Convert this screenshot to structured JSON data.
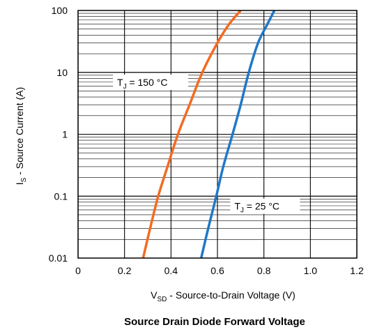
{
  "chart_data": {
    "type": "line",
    "title": "Source Drain Diode Forward Voltage",
    "xlabel": {
      "main": "V",
      "sub": "SD",
      "rest": " - Source-to-Drain Voltage (V)"
    },
    "ylabel": {
      "main": "I",
      "sub": "S",
      "rest": " - Source Current (A)"
    },
    "xlim": [
      0,
      1.2
    ],
    "ylim": [
      0.01,
      100
    ],
    "yscale": "log",
    "grid": true,
    "x_ticks": [
      "0",
      "0.2",
      "0.4",
      "0.6",
      "0.8",
      "1.0",
      "1.2"
    ],
    "y_ticks": [
      "0.01",
      "0.1",
      "1",
      "10",
      "100"
    ],
    "series": [
      {
        "color": "#f26b21",
        "annotation": {
          "main": "T",
          "sub": "J",
          "rest": " = 150 °C"
        },
        "x": [
          0.28,
          0.31,
          0.345,
          0.385,
          0.43,
          0.48,
          0.535,
          0.6,
          0.65,
          0.7
        ],
        "y": [
          0.01,
          0.03,
          0.1,
          0.3,
          1,
          3,
          10,
          30,
          60,
          100
        ]
      },
      {
        "color": "#1f78c8",
        "annotation": {
          "main": "T",
          "sub": "J",
          "rest": " = 25 °C"
        },
        "x": [
          0.53,
          0.56,
          0.595,
          0.625,
          0.665,
          0.7,
          0.735,
          0.775,
          0.815,
          0.845
        ],
        "y": [
          0.01,
          0.03,
          0.1,
          0.3,
          1,
          3,
          10,
          30,
          60,
          100
        ]
      }
    ]
  }
}
